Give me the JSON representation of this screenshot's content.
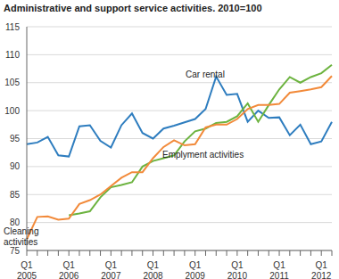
{
  "chart_data": {
    "type": "line",
    "title": "Administrative and support service activities. 2010=100",
    "categories": [
      "Q1 2005",
      null,
      null,
      null,
      "Q1 2006",
      null,
      null,
      null,
      "Q1 2007",
      null,
      null,
      null,
      "Q1 2008",
      null,
      null,
      null,
      "Q1 2009",
      null,
      null,
      null,
      "Q1 2010",
      null,
      null,
      null,
      "Q1 2011",
      null,
      null,
      null,
      "Q1 2012",
      null
    ],
    "series": [
      {
        "name": "Car rental",
        "color": "#2e7dbf",
        "values": [
          94,
          94.3,
          95.3,
          92,
          91.8,
          97.2,
          97.4,
          94.6,
          93.4,
          97.4,
          99.5,
          96,
          95,
          96.8,
          97.3,
          97.9,
          98.5,
          100.3,
          106.1,
          102.8,
          103,
          98,
          100,
          98.7,
          98.8,
          95.6,
          97.5,
          94,
          94.5,
          98
        ]
      },
      {
        "name": "Emplyment activities",
        "color": "#6cb33f",
        "values": [
          null,
          null,
          null,
          null,
          81.3,
          81.6,
          82,
          84.5,
          86.3,
          86.7,
          87.2,
          90,
          91,
          91.5,
          92,
          94.5,
          96.3,
          96.8,
          97.8,
          98,
          99,
          101.3,
          98,
          101,
          103.8,
          106,
          105,
          106,
          106.7,
          108.2
        ]
      },
      {
        "name": "Cleaning activities",
        "color": "#f28a3a",
        "values": [
          77,
          81,
          81.1,
          80.5,
          80.7,
          83.3,
          84,
          85,
          86.5,
          88,
          89,
          89,
          91.5,
          93.5,
          94.7,
          93.8,
          94,
          97,
          97.5,
          97.5,
          98.5,
          100.3,
          101,
          101,
          101.2,
          103.2,
          103.5,
          103.8,
          104.2,
          106.2
        ]
      }
    ],
    "ylim": [
      75,
      115
    ],
    "yticks": [
      75,
      80,
      85,
      90,
      95,
      100,
      105,
      110,
      115
    ],
    "grid": true
  }
}
